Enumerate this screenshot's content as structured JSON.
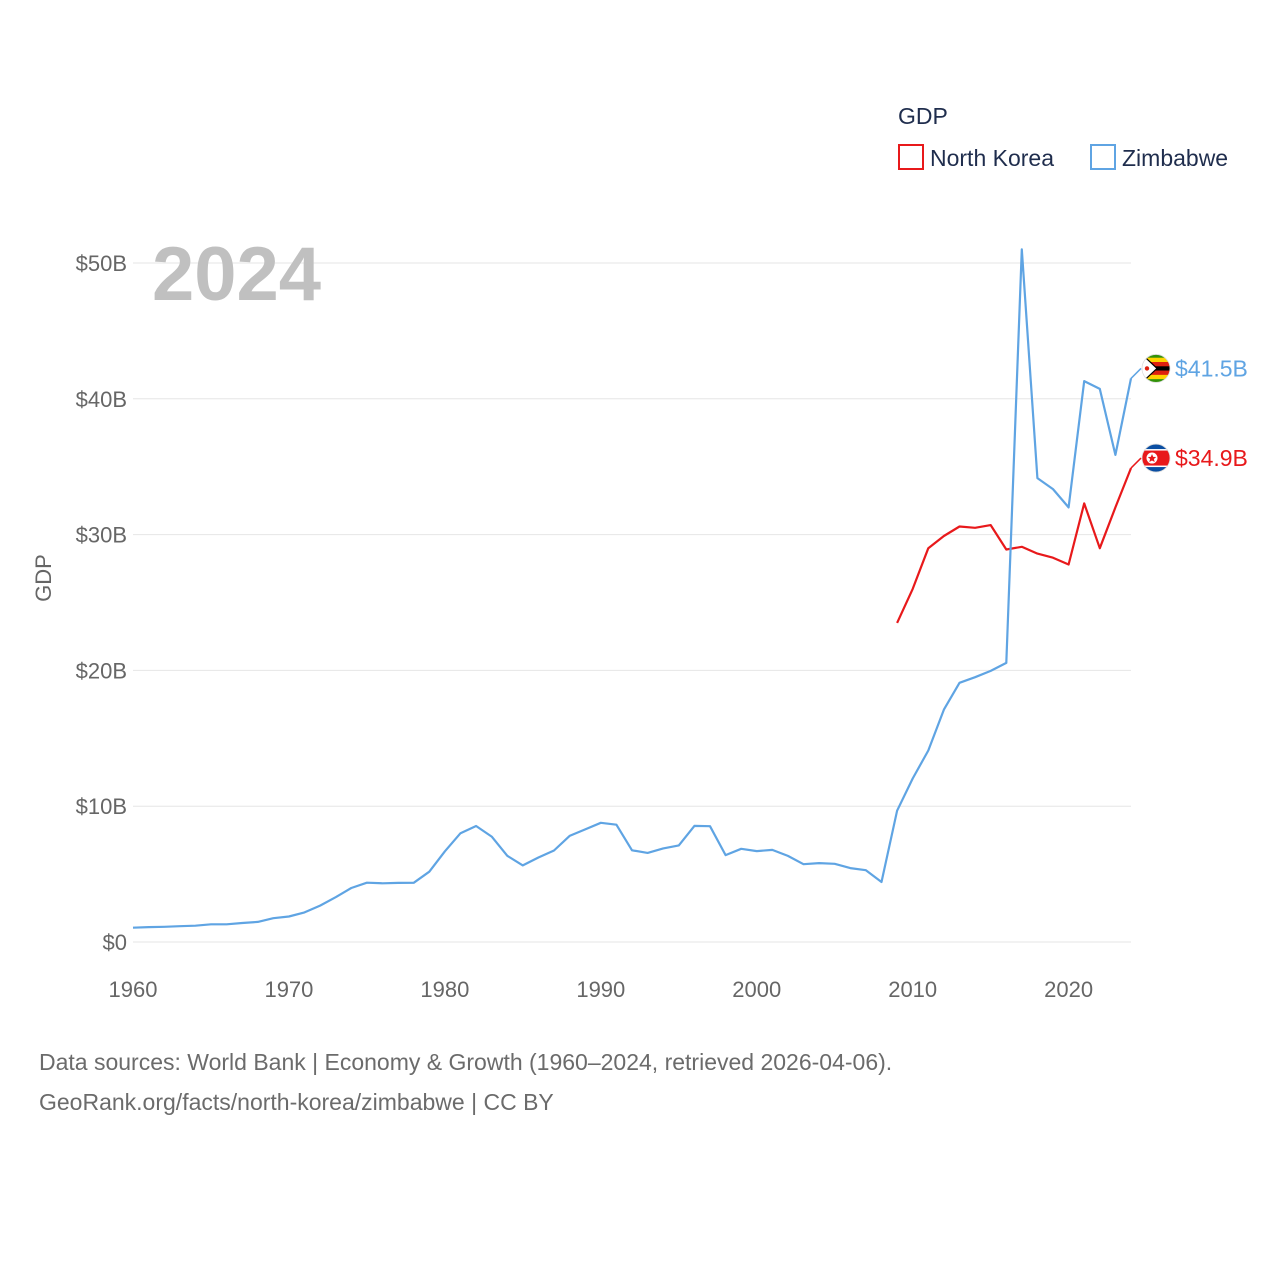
{
  "chart_data": {
    "type": "line",
    "title": "GDP",
    "year_label": "2024",
    "ylabel": "GDP",
    "xlabel": "",
    "xlim": [
      1960,
      2024
    ],
    "ylim": [
      0,
      50
    ],
    "x_ticks": [
      1960,
      1970,
      1980,
      1990,
      2000,
      2010,
      2020
    ],
    "y_ticks": [
      {
        "value": 0,
        "label": "$0"
      },
      {
        "value": 10,
        "label": "$10B"
      },
      {
        "value": 20,
        "label": "$20B"
      },
      {
        "value": 30,
        "label": "$30B"
      },
      {
        "value": 40,
        "label": "$40B"
      },
      {
        "value": 50,
        "label": "$50B"
      }
    ],
    "legend_position": "top-right",
    "series": [
      {
        "name": "North Korea",
        "color": "#e8191b",
        "end_label": "$34.9B",
        "flag_icon": "north-korea-flag-icon",
        "x": [
          2009,
          2010,
          2011,
          2012,
          2013,
          2014,
          2015,
          2016,
          2017,
          2018,
          2019,
          2020,
          2021,
          2022,
          2023,
          2024
        ],
        "values": [
          23.5,
          26.0,
          29.0,
          29.9,
          30.6,
          30.5,
          30.7,
          28.9,
          29.1,
          28.6,
          28.3,
          27.8,
          32.3,
          29.0,
          32.0,
          34.9
        ]
      },
      {
        "name": "Zimbabwe",
        "color": "#5fa4e3",
        "end_label": "$41.5B",
        "flag_icon": "zimbabwe-flag-icon",
        "x": [
          1960,
          1961,
          1962,
          1963,
          1964,
          1965,
          1966,
          1967,
          1968,
          1969,
          1970,
          1971,
          1972,
          1973,
          1974,
          1975,
          1976,
          1977,
          1978,
          1979,
          1980,
          1981,
          1982,
          1983,
          1984,
          1985,
          1986,
          1987,
          1988,
          1989,
          1990,
          1991,
          1992,
          1993,
          1994,
          1995,
          1996,
          1997,
          1998,
          1999,
          2000,
          2001,
          2002,
          2003,
          2004,
          2005,
          2006,
          2007,
          2008,
          2009,
          2010,
          2011,
          2012,
          2013,
          2014,
          2015,
          2016,
          2017,
          2018,
          2019,
          2020,
          2021,
          2022,
          2023,
          2024
        ],
        "values": [
          1.05,
          1.1,
          1.12,
          1.16,
          1.2,
          1.3,
          1.3,
          1.4,
          1.48,
          1.75,
          1.88,
          2.18,
          2.68,
          3.3,
          3.98,
          4.37,
          4.32,
          4.35,
          4.36,
          5.18,
          6.68,
          8.01,
          8.54,
          7.76,
          6.35,
          5.64,
          6.22,
          6.74,
          7.81,
          8.29,
          8.78,
          8.64,
          6.75,
          6.56,
          6.89,
          7.11,
          8.55,
          8.53,
          6.4,
          6.86,
          6.69,
          6.78,
          6.34,
          5.73,
          5.81,
          5.76,
          5.44,
          5.29,
          4.42,
          9.67,
          12.04,
          14.1,
          17.11,
          19.09,
          19.5,
          19.96,
          20.55,
          51.0,
          34.16,
          33.35,
          32.0,
          41.3,
          40.73,
          35.87,
          41.5
        ]
      }
    ]
  },
  "source": {
    "line1": "Data sources: World Bank | Economy & Growth (1960–2024, retrieved 2026-04-06).",
    "line2": "GeoRank.org/facts/north-korea/zimbabwe | CC BY"
  }
}
